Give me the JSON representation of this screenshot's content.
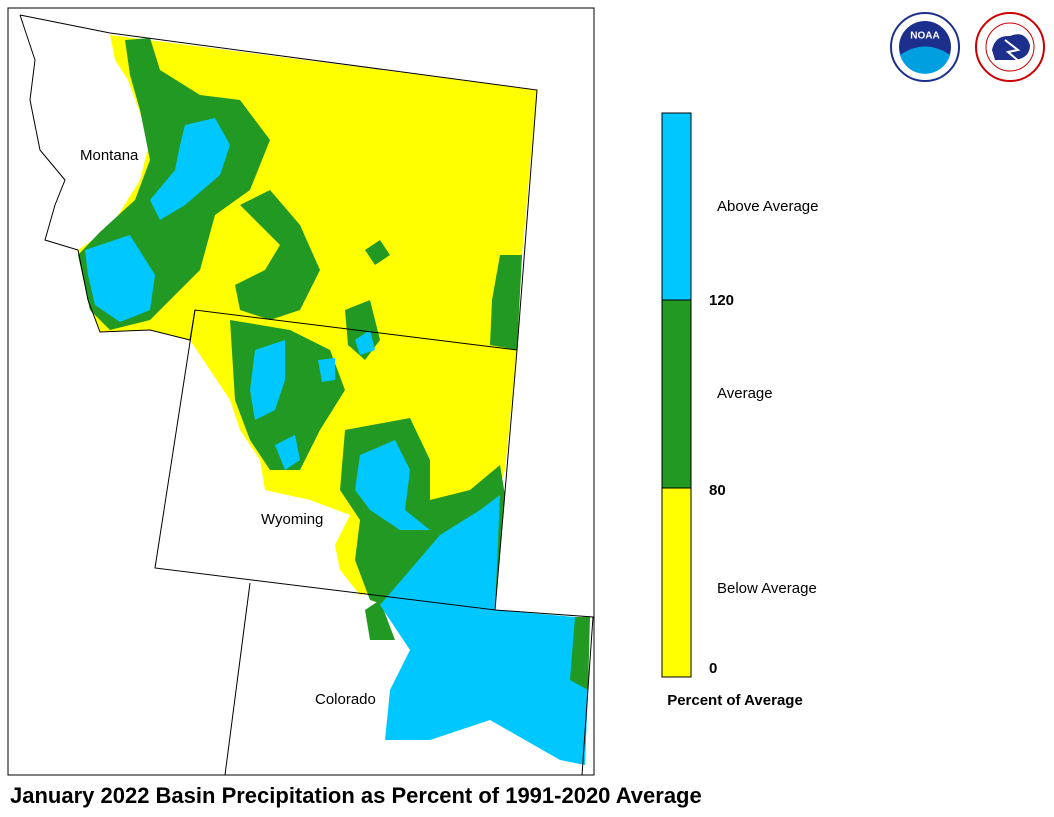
{
  "title": "January 2022 Basin Precipitation as Percent of 1991-2020 Average",
  "states": [
    "Montana",
    "Wyoming",
    "Colorado"
  ],
  "legend": {
    "title": "Percent of Average",
    "classes": [
      "Above Average",
      "Average",
      "Below Average"
    ],
    "thresholds": [
      "120",
      "80",
      "0"
    ]
  },
  "logos": {
    "noaa": "NOAA"
  }
}
